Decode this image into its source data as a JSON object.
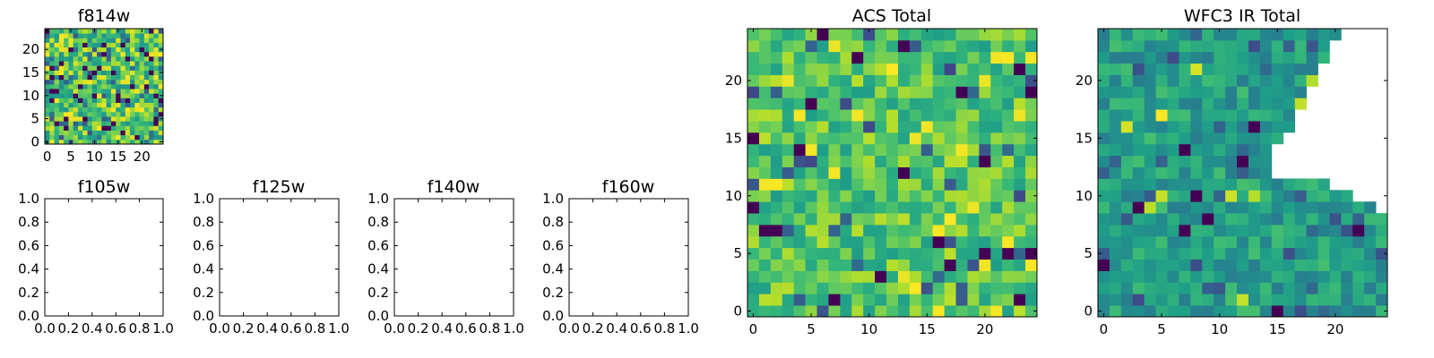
{
  "chart_data": [
    {
      "type": "heatmap",
      "title": "f814w",
      "colormap": "viridis",
      "grid_size": 25,
      "xticks": [
        0,
        5,
        10,
        15,
        20
      ],
      "yticks": [
        0,
        5,
        10,
        15,
        20
      ],
      "xlim": [
        -0.5,
        24.5
      ],
      "ylim": [
        -0.5,
        24.5
      ],
      "value_range": [
        0,
        1
      ],
      "fill": "random-dense",
      "seed": 814
    },
    {
      "type": "empty",
      "title": "f105w",
      "xticks": [
        "0.0",
        "0.2",
        "0.4",
        "0.6",
        "0.8",
        "1.0"
      ],
      "yticks": [
        "0.0",
        "0.2",
        "0.4",
        "0.6",
        "0.8",
        "1.0"
      ],
      "xlim": [
        0,
        1
      ],
      "ylim": [
        0,
        1
      ]
    },
    {
      "type": "empty",
      "title": "f125w",
      "xticks": [
        "0.0",
        "0.2",
        "0.4",
        "0.6",
        "0.8",
        "1.0"
      ],
      "yticks": [
        "0.0",
        "0.2",
        "0.4",
        "0.6",
        "0.8",
        "1.0"
      ],
      "xlim": [
        0,
        1
      ],
      "ylim": [
        0,
        1
      ]
    },
    {
      "type": "empty",
      "title": "f140w",
      "xticks": [
        "0.0",
        "0.2",
        "0.4",
        "0.6",
        "0.8",
        "1.0"
      ],
      "yticks": [
        "0.0",
        "0.2",
        "0.4",
        "0.6",
        "0.8",
        "1.0"
      ],
      "xlim": [
        0,
        1
      ],
      "ylim": [
        0,
        1
      ]
    },
    {
      "type": "empty",
      "title": "f160w",
      "xticks": [
        "0.0",
        "0.2",
        "0.4",
        "0.6",
        "0.8",
        "1.0"
      ],
      "yticks": [
        "0.0",
        "0.2",
        "0.4",
        "0.6",
        "0.8",
        "1.0"
      ],
      "xlim": [
        0,
        1
      ],
      "ylim": [
        0,
        1
      ]
    },
    {
      "type": "heatmap",
      "title": "ACS Total",
      "colormap": "viridis",
      "grid_size": 25,
      "xticks": [
        0,
        5,
        10,
        15,
        20
      ],
      "yticks": [
        0,
        5,
        10,
        15,
        20
      ],
      "xlim": [
        -0.5,
        24.5
      ],
      "ylim": [
        -0.5,
        24.5
      ],
      "value_range": [
        0,
        1
      ],
      "fill": "random-bright",
      "seed": 1234
    },
    {
      "type": "heatmap",
      "title": "WFC3 IR Total",
      "colormap": "viridis",
      "grid_size": 25,
      "xticks": [
        0,
        5,
        10,
        15,
        20
      ],
      "yticks": [
        0,
        5,
        10,
        15,
        20
      ],
      "xlim": [
        -0.5,
        24.5
      ],
      "ylim": [
        -0.5,
        24.5
      ],
      "value_range": [
        0,
        1
      ],
      "fill": "random-mid",
      "seed": 3141,
      "blank_region_right_edge_by_row": [
        {
          "rows": [
            24,
            24
          ],
          "first_blank_col": 21
        },
        {
          "rows": [
            23,
            23
          ],
          "first_blank_col": 20
        },
        {
          "rows": [
            22,
            22
          ],
          "first_blank_col": 20
        },
        {
          "rows": [
            21,
            21
          ],
          "first_blank_col": 19
        },
        {
          "rows": [
            20,
            20
          ],
          "first_blank_col": 19
        },
        {
          "rows": [
            19,
            19
          ],
          "first_blank_col": 18
        },
        {
          "rows": [
            18,
            18
          ],
          "first_blank_col": 18
        },
        {
          "rows": [
            17,
            17
          ],
          "first_blank_col": 17
        },
        {
          "rows": [
            16,
            16
          ],
          "first_blank_col": 17
        },
        {
          "rows": [
            15,
            15
          ],
          "first_blank_col": 16
        },
        {
          "rows": [
            14,
            14
          ],
          "first_blank_col": 15
        },
        {
          "rows": [
            13,
            13
          ],
          "first_blank_col": 15
        },
        {
          "rows": [
            12,
            12
          ],
          "first_blank_col": 15
        },
        {
          "rows": [
            11,
            11
          ],
          "first_blank_col": 20
        },
        {
          "rows": [
            10,
            10
          ],
          "first_blank_col": 22
        },
        {
          "rows": [
            9,
            9
          ],
          "first_blank_col": 24
        }
      ]
    }
  ]
}
